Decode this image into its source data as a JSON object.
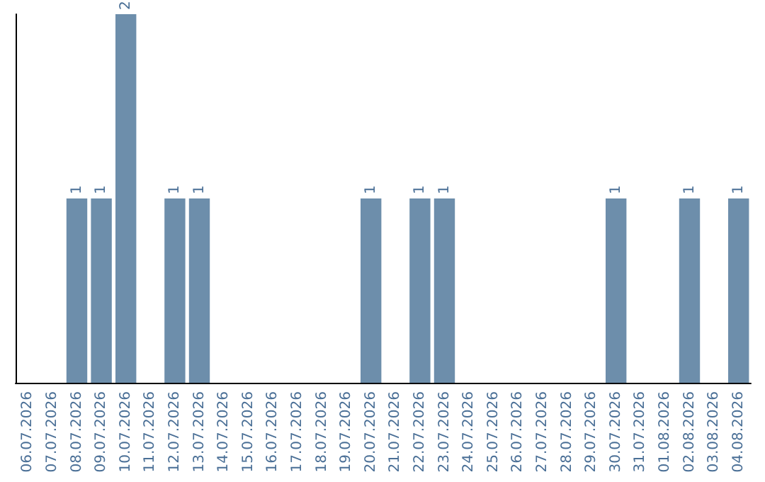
{
  "chart_data": {
    "type": "bar",
    "categories": [
      "06.07.2026",
      "07.07.2026",
      "08.07.2026",
      "09.07.2026",
      "10.07.2026",
      "11.07.2026",
      "12.07.2026",
      "13.07.2026",
      "14.07.2026",
      "15.07.2026",
      "16.07.2026",
      "17.07.2026",
      "18.07.2026",
      "19.07.2026",
      "20.07.2026",
      "21.07.2026",
      "22.07.2026",
      "23.07.2026",
      "24.07.2026",
      "25.07.2026",
      "26.07.2026",
      "27.07.2026",
      "28.07.2026",
      "29.07.2026",
      "30.07.2026",
      "31.07.2026",
      "01.08.2026",
      "02.08.2026",
      "03.08.2026",
      "04.08.2026"
    ],
    "values": [
      null,
      null,
      1,
      1,
      2,
      null,
      1,
      1,
      null,
      null,
      null,
      null,
      null,
      null,
      1,
      null,
      1,
      1,
      null,
      null,
      null,
      null,
      null,
      null,
      1,
      null,
      null,
      1,
      null,
      1
    ],
    "color": "#6d8eab",
    "data_labels": true,
    "tick_labels": "x"
  }
}
